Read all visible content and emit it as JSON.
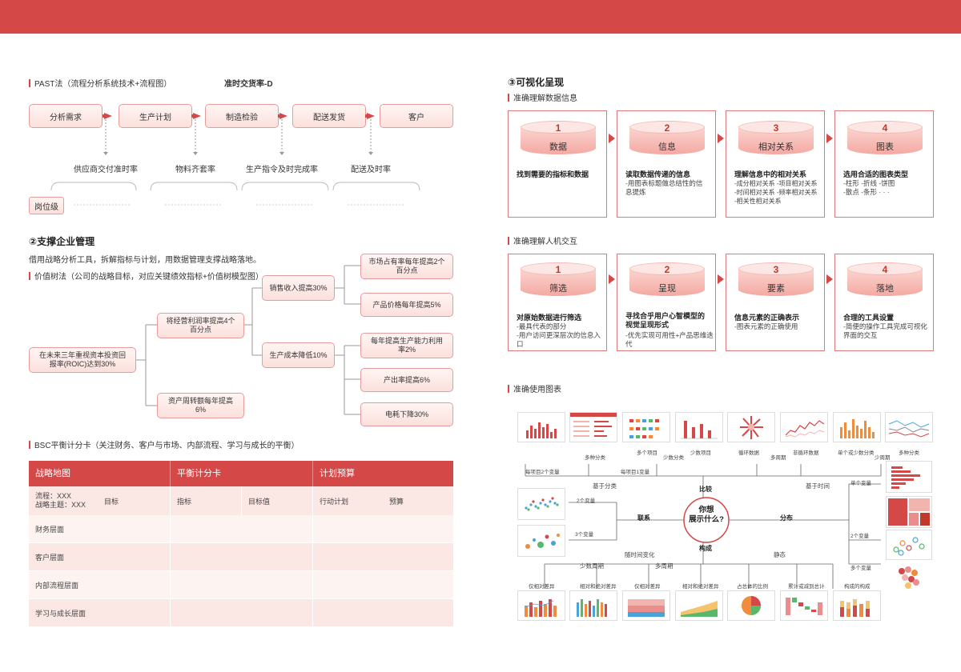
{
  "colors": {
    "accent": "#d54848"
  },
  "left": {
    "past_title": "PAST法（流程分析系统技术+流程图）",
    "past_kpi": "准时交货率-D",
    "process": [
      "分析需求",
      "生产计划",
      "制造检验",
      "配送发货",
      "客户"
    ],
    "process_metrics": [
      "供应商交付准时率",
      "物料齐套率",
      "生产指令及时完成率",
      "配送及时率"
    ],
    "position_label": "岗位级",
    "support_title": "②支撑企业管理",
    "support_desc": "借用战略分析工具，拆解指标与计划，用数据管理支撑战略落地。",
    "value_tree_title": "价值树法（公司的战略目标，对应关键绩效指标+价值树模型图）",
    "tree": {
      "root": "在未来三年重视资本投资回报率(ROIC)达到30%",
      "l1": [
        "将经营利润率提高4个百分点",
        "资产周转额每年提高6%"
      ],
      "l2": [
        "销售收入提高30%",
        "生产成本降低10%"
      ],
      "l3": [
        "市场占有率每年提高2个百分点",
        "产品价格每年提高5%",
        "每年提高生产能力利用率2%",
        "产出率提高6%",
        "电耗下降30%"
      ]
    },
    "bsc_title": "BSC平衡计分卡（关注财务、客户与市场、内部流程、学习与成长的平衡）",
    "bsc_headers": [
      "战略地图",
      "平衡计分卡",
      "计划预算"
    ],
    "bsc_sub": {
      "process": "流程：XXX",
      "theme": "战略主题：XXX",
      "cols": [
        "目标",
        "指标",
        "目标值",
        "行动计划",
        "预算"
      ]
    },
    "bsc_rows": [
      "财务层面",
      "客户层面",
      "内部流程层面",
      "学习与成长层面"
    ]
  },
  "right": {
    "viz_title": "③可视化呈现",
    "sec1": "准确理解数据信息",
    "cards1": [
      {
        "num": "1",
        "label": "数据",
        "title": "找到需要的指标和数据",
        "desc": ""
      },
      {
        "num": "2",
        "label": "信息",
        "title": "读取数据传递的信息",
        "desc": "-用图表标题做总结性的信\n息提炼"
      },
      {
        "num": "3",
        "label": "相对关系",
        "title": "理解信息中的相对关系",
        "desc": "-成分相对关系 -项目相对关系\n-时间相对关系 -频率相对关系\n-相关性相对关系"
      },
      {
        "num": "4",
        "label": "图表",
        "title": "选用合适的图表类型",
        "desc": "-柱形  -折线  -饼图\n-散点  -条形  · · ·"
      }
    ],
    "sec2": "准确理解人机交互",
    "cards2": [
      {
        "num": "1",
        "label": "筛选",
        "title": "对原始数据进行筛选",
        "desc": "-最具代表的部分\n-用户访问更深层次的信息入口"
      },
      {
        "num": "2",
        "label": "呈现",
        "title": "寻找合乎用户心智模型的视觉呈现形式",
        "desc": "-优先实现可用性+产品思维迭代"
      },
      {
        "num": "3",
        "label": "要素",
        "title": "信息元素的正确表示",
        "desc": "-图表元素的正确使用"
      },
      {
        "num": "4",
        "label": "落地",
        "title": "合理的工具设置",
        "desc": "-简便的操作工具完成可视化\n界面的交互"
      }
    ],
    "sec3": "准确使用图表",
    "center": "你想\n展示什么?",
    "branches": {
      "compare": "比较",
      "relation": "联系",
      "distribution": "分布",
      "composition": "构成"
    },
    "labels": {
      "multi_var": "每项目2个变量",
      "one_var": "每项目1变量",
      "by_category": "基于分类",
      "by_time": "基于时间",
      "many_items": "多种分类",
      "few_items": "多个项目",
      "few_cat": "少数分类",
      "few_items2": "少数项目",
      "cyclic": "循环数据",
      "non_cyclic": "非循环数据",
      "many_periods": "多周期",
      "single_few": "单个或少数分类",
      "few_periods": "少周期",
      "many_cat": "多种分类",
      "two_var": "2个变量",
      "three_var": "3个变量",
      "single_var": "单个变量",
      "two_var2": "2个变量",
      "multi_var2": "多个变量",
      "over_time": "随时间变化",
      "static": "静态",
      "few_period": "少数周期",
      "many_period": "多周期",
      "relative_diff": "仅相对差异",
      "rel_abs_diff": "相对和绝对差异",
      "relative_diff2": "仅相对差异",
      "rel_abs_diff2": "相对和绝对差异",
      "share": "占总体的比例",
      "accumulate": "累计或减到总计",
      "composition_of": "构成的构成"
    }
  }
}
